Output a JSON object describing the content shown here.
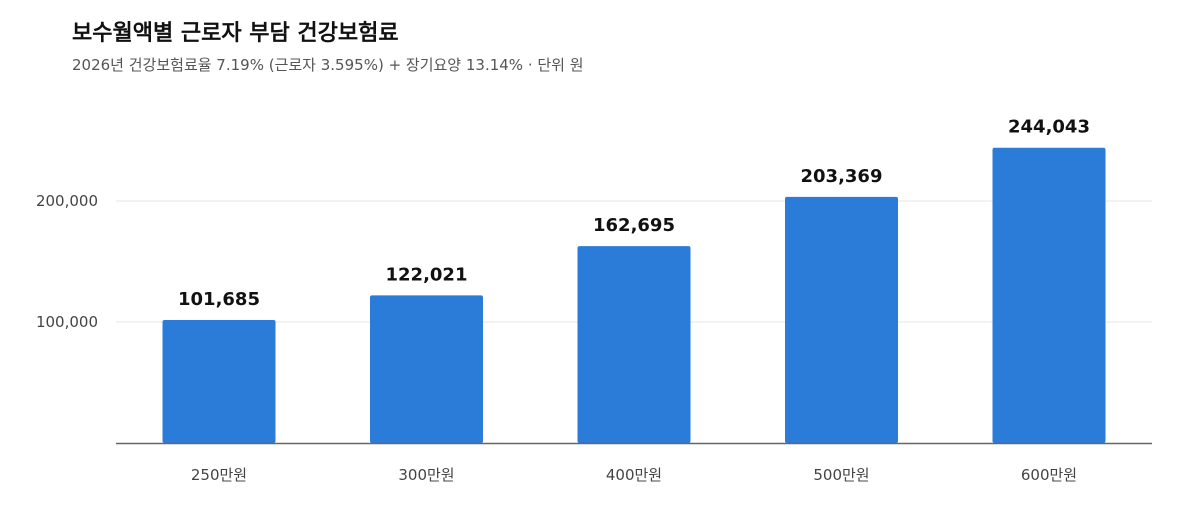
{
  "header": {
    "title": "보수월액별 근로자 부담 건강보험료",
    "subtitle": "2026년 건강보험료율 7.19% (근로자 3.595%) + 장기요양 13.14% · 단위 원"
  },
  "chart_data": {
    "type": "bar",
    "title": "보수월액별 근로자 부담 건강보험료",
    "subtitle": "2026년 건강보험료율 7.19% (근로자 3.595%) + 장기요양 13.14% · 단위 원",
    "xlabel": "",
    "ylabel": "",
    "categories": [
      "250만원",
      "300만원",
      "400만원",
      "500만원",
      "600만원"
    ],
    "values": [
      101685,
      122021,
      162695,
      203369,
      244043
    ],
    "data_labels": [
      "101,685",
      "122,021",
      "162,695",
      "203,369",
      "244,043"
    ],
    "ylim": [
      0,
      250000
    ],
    "y_ticks": [
      100000,
      200000
    ],
    "y_tick_labels": [
      "100,000",
      "200,000"
    ],
    "grid": true,
    "legend": "none",
    "colors": {
      "bar": "#2b7bd9",
      "axis": "#666666",
      "grid": "#e6e6e6"
    }
  }
}
